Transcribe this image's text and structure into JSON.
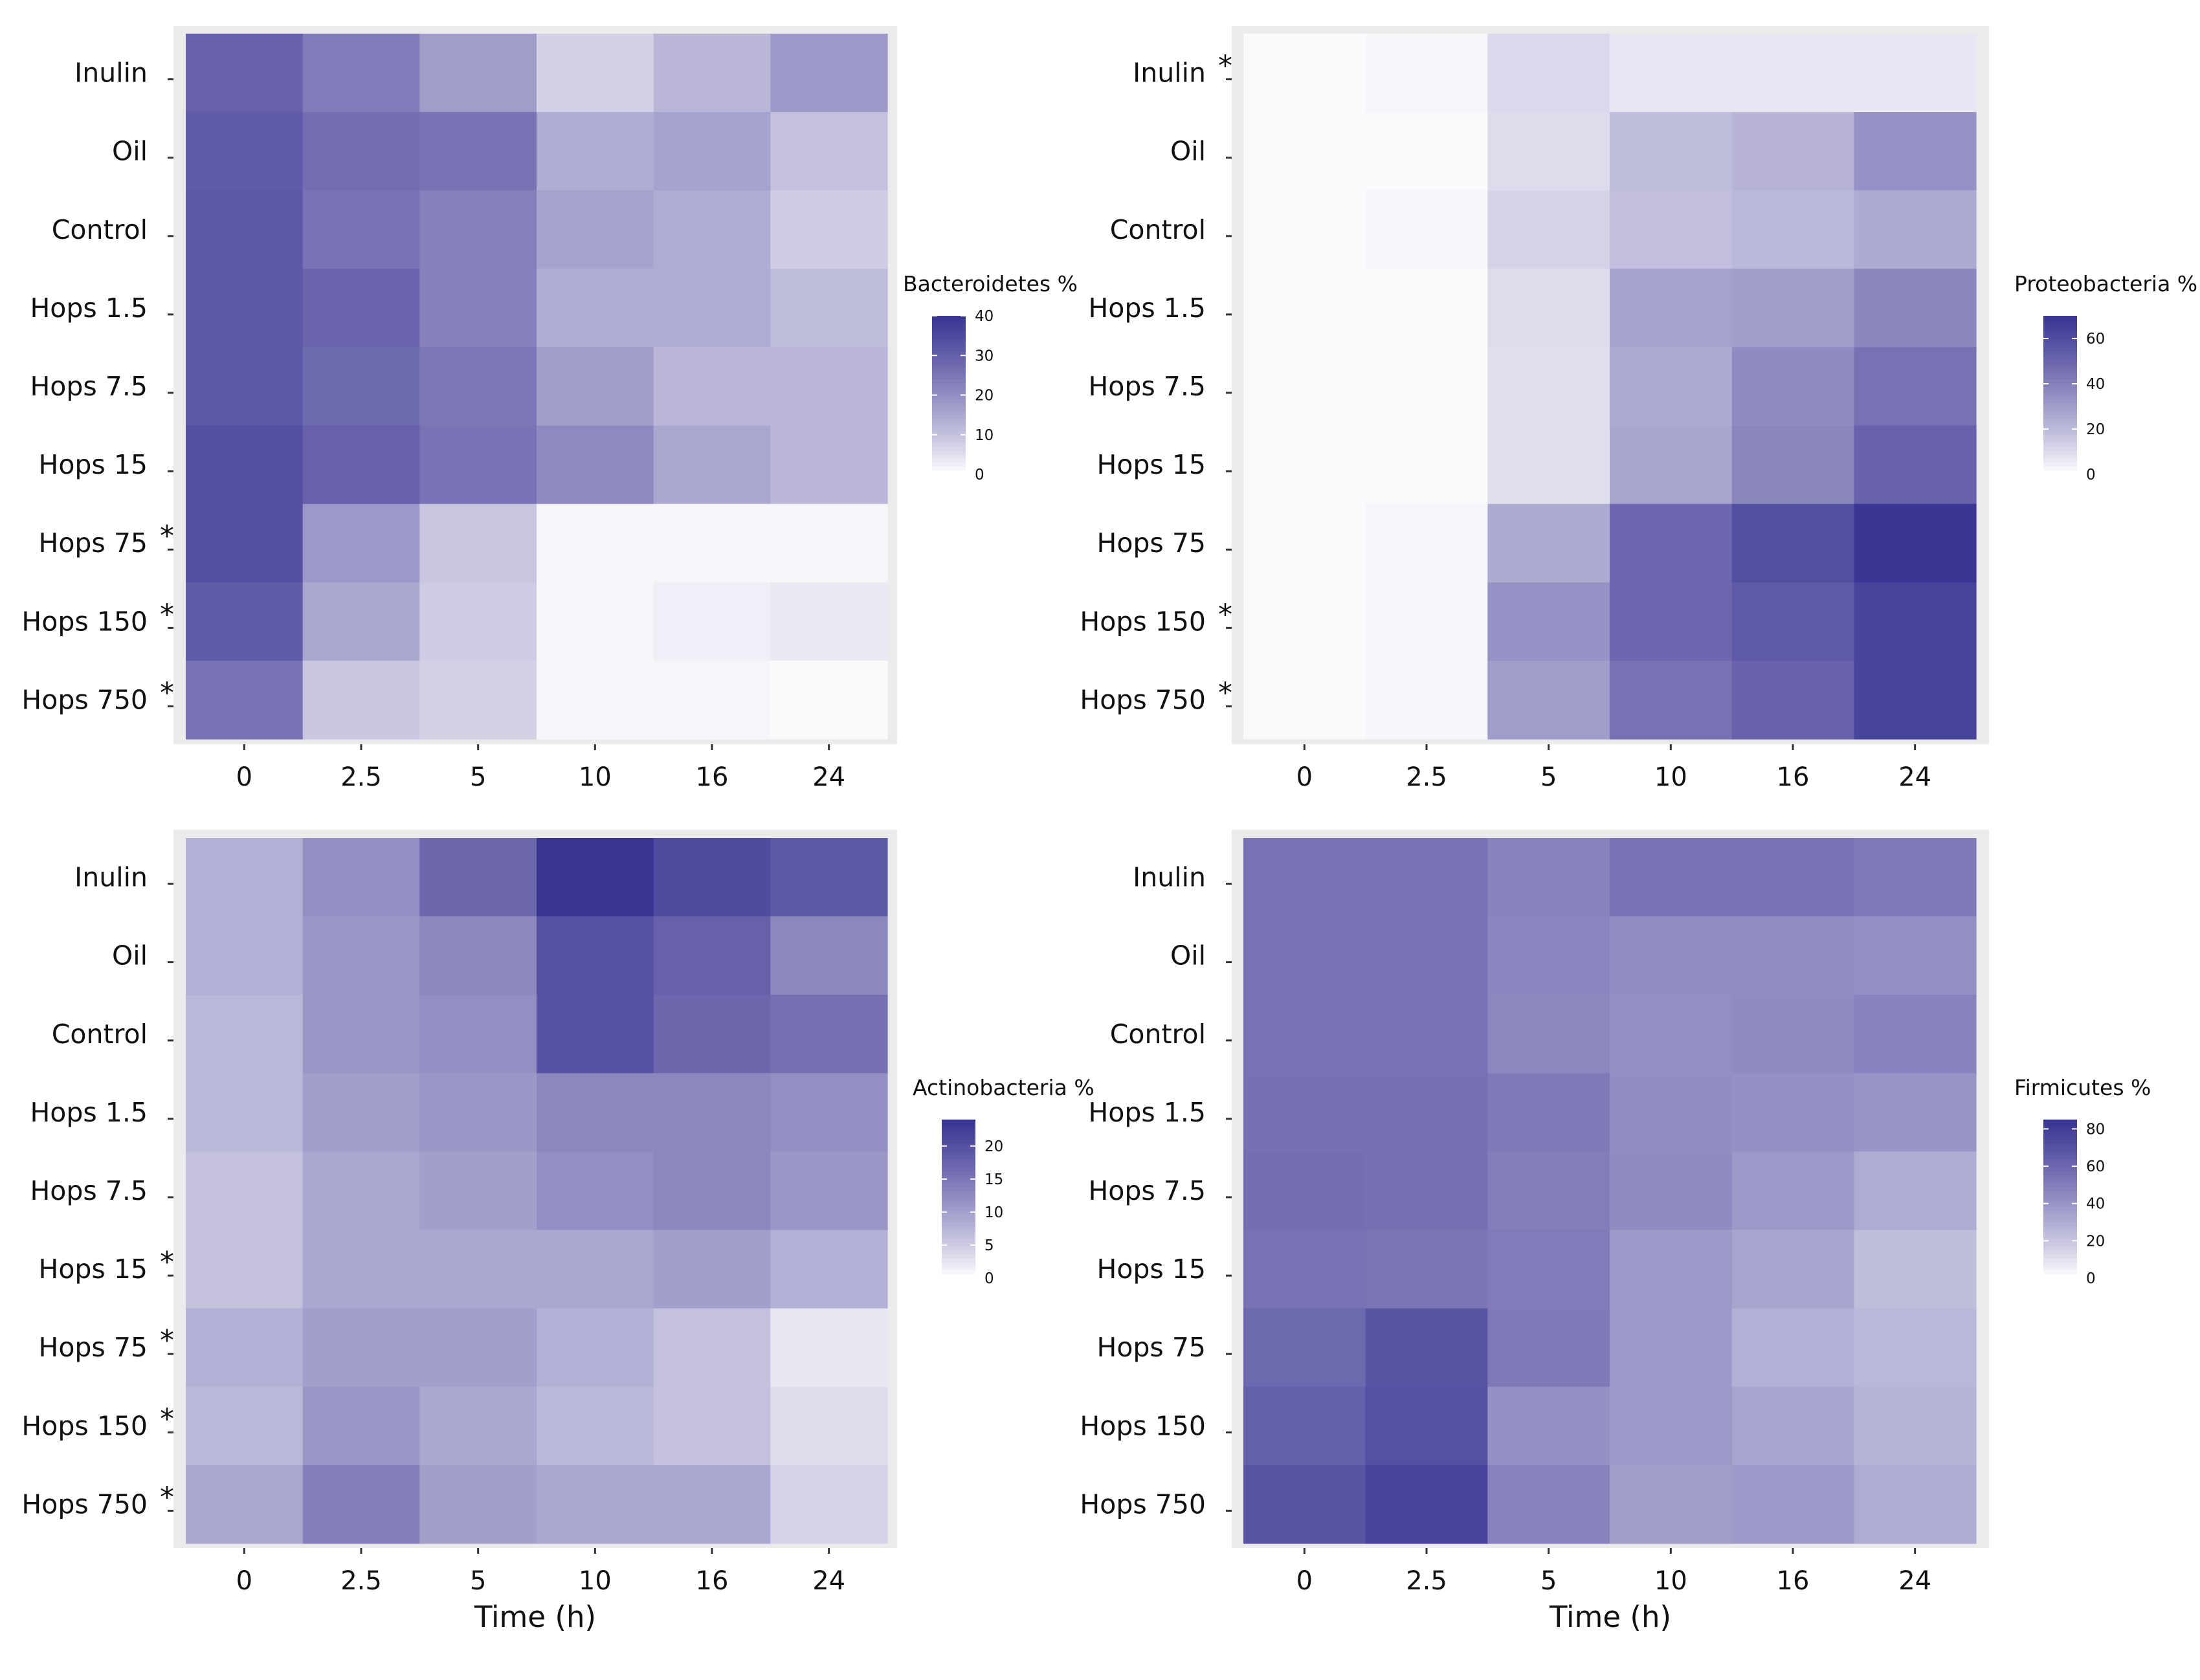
{
  "figure": {
    "colors": {
      "low": "#ffffff",
      "high": "#3b3593",
      "panel_bg": "#ebebeb",
      "tick": "#333333"
    },
    "rows": [
      "Inulin",
      "Oil",
      "Control",
      "Hops 1.5",
      "Hops 7.5",
      "Hops 15",
      "Hops 75",
      "Hops 150",
      "Hops 750"
    ],
    "columns": [
      "0",
      "2.5",
      "5",
      "10",
      "16",
      "24"
    ],
    "x_label": "Time (h)"
  },
  "chart_data": [
    {
      "type": "heatmap",
      "legend_title": "Bacteroidetes %",
      "scale_max": 40,
      "legend_ticks": [
        0,
        10,
        20,
        30,
        40
      ],
      "stars": [
        false,
        false,
        false,
        false,
        false,
        false,
        true,
        true,
        true
      ],
      "values": [
        [
          30,
          24,
          17,
          7,
          12,
          18
        ],
        [
          31,
          27,
          26,
          14,
          16,
          10
        ],
        [
          32,
          26,
          23,
          16,
          14,
          8
        ],
        [
          32,
          29,
          23,
          14,
          14,
          11
        ],
        [
          32,
          28,
          25,
          17,
          12,
          12
        ],
        [
          34,
          30,
          26,
          21,
          15,
          12
        ],
        [
          34,
          18,
          9,
          1,
          1,
          1
        ],
        [
          31,
          15,
          8,
          1,
          2,
          3
        ],
        [
          26,
          9,
          7,
          1,
          1,
          0.5
        ]
      ]
    },
    {
      "type": "heatmap",
      "legend_title": "Proteobacteria %",
      "scale_max": 70,
      "legend_ticks": [
        0,
        20,
        40,
        60
      ],
      "stars": [
        true,
        false,
        false,
        false,
        false,
        false,
        false,
        true,
        true
      ],
      "values": [
        [
          1,
          2,
          10,
          6,
          6,
          6
        ],
        [
          1,
          1,
          9,
          19,
          22,
          34
        ],
        [
          1,
          2,
          12,
          18,
          20,
          25
        ],
        [
          1,
          1,
          9,
          28,
          30,
          38
        ],
        [
          1,
          1,
          8,
          25,
          36,
          46
        ],
        [
          1,
          1,
          8,
          27,
          38,
          52
        ],
        [
          1,
          2,
          25,
          50,
          60,
          72
        ],
        [
          1,
          2,
          34,
          50,
          55,
          64
        ],
        [
          1,
          2,
          30,
          46,
          52,
          64
        ]
      ]
    },
    {
      "type": "heatmap",
      "legend_title": "Actinobacteria %",
      "scale_max": 24,
      "legend_ticks": [
        0,
        5,
        10,
        15,
        20
      ],
      "stars": [
        false,
        false,
        false,
        false,
        false,
        true,
        true,
        true,
        true
      ],
      "values": [
        [
          8,
          12,
          17,
          24,
          21,
          19
        ],
        [
          8,
          11,
          13,
          20,
          18,
          13
        ],
        [
          7,
          11,
          12,
          20,
          17,
          16
        ],
        [
          7,
          10,
          11,
          13,
          13,
          12
        ],
        [
          6,
          9,
          10,
          12,
          13,
          11
        ],
        [
          6,
          9,
          9,
          9,
          10,
          8
        ],
        [
          8,
          10,
          10,
          8,
          6,
          2
        ],
        [
          7,
          11,
          9,
          7,
          6,
          3
        ],
        [
          9,
          14,
          10,
          9,
          9,
          4
        ]
      ]
    },
    {
      "type": "heatmap",
      "legend_title": "Firmicutes %",
      "scale_max": 85,
      "legend_ticks": [
        0,
        20,
        40,
        60,
        80
      ],
      "stars": [
        false,
        false,
        false,
        false,
        false,
        false,
        false,
        false,
        false
      ],
      "values": [
        [
          55,
          55,
          48,
          55,
          55,
          52
        ],
        [
          55,
          55,
          47,
          43,
          43,
          42
        ],
        [
          55,
          55,
          46,
          42,
          44,
          48
        ],
        [
          56,
          56,
          52,
          43,
          42,
          40
        ],
        [
          57,
          56,
          50,
          44,
          38,
          30
        ],
        [
          55,
          54,
          51,
          38,
          33,
          23
        ],
        [
          60,
          70,
          52,
          38,
          28,
          25
        ],
        [
          64,
          72,
          42,
          38,
          33,
          27
        ],
        [
          70,
          78,
          48,
          36,
          38,
          30
        ]
      ]
    }
  ]
}
